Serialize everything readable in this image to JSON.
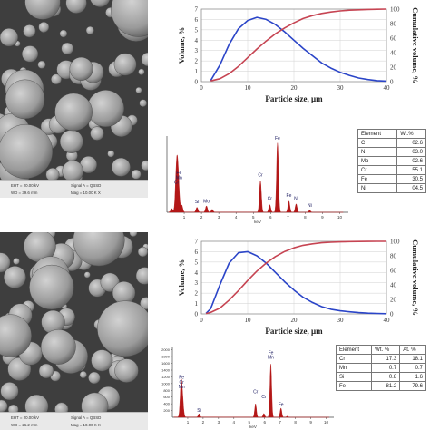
{
  "sem_images": [
    {
      "info": {
        "eht": "EHT = 20.00 kV",
        "wd": "WD = 39.6 mm",
        "signal": "Signal A = QBSD",
        "mag": "Mag = 10.00 K X"
      }
    },
    {
      "info": {
        "eht": "EHT = 20.00 kV",
        "wd": "WD = 26.2 mm",
        "signal": "Signal A = QBSD",
        "mag": "Mag = 10.00 K X"
      }
    }
  ],
  "colors": {
    "volume": "#2b45c8",
    "cumulative": "#c64452",
    "spectrum": "#b31717"
  },
  "chart_data": [
    {
      "type": "line",
      "xlabel": "Particle size, μm",
      "ylabel": "Volume, %",
      "y2label": "Cumulative volume, %",
      "xlim": [
        0,
        40
      ],
      "ylim": [
        0,
        7
      ],
      "y2lim": [
        0,
        100
      ],
      "x_ticks": [
        0,
        10,
        20,
        30,
        40
      ],
      "y_ticks": [
        0,
        1,
        2,
        3,
        4,
        5,
        6,
        7
      ],
      "y2_ticks": [
        0,
        20,
        40,
        60,
        80,
        100
      ],
      "series": [
        {
          "axis": "left",
          "x": [
            2,
            4,
            6,
            8,
            10,
            12,
            14,
            16,
            18,
            20,
            22,
            24,
            26,
            28,
            30,
            32,
            34,
            36,
            38,
            40
          ],
          "values": [
            0.1,
            1.6,
            3.6,
            5.1,
            5.9,
            6.2,
            6.0,
            5.5,
            4.8,
            4.0,
            3.2,
            2.5,
            1.8,
            1.3,
            0.9,
            0.6,
            0.35,
            0.2,
            0.1,
            0.05
          ]
        },
        {
          "axis": "right",
          "x": [
            2,
            4,
            6,
            8,
            10,
            12,
            14,
            16,
            18,
            20,
            22,
            24,
            26,
            28,
            30,
            32,
            34,
            36,
            38,
            40
          ],
          "values": [
            1,
            4,
            11,
            21,
            33,
            45,
            56,
            66,
            74,
            81,
            87,
            91,
            94,
            96,
            97.5,
            98.5,
            99,
            99.5,
            99.8,
            100
          ]
        }
      ]
    },
    {
      "type": "spectrum",
      "xlabel": "keV",
      "x_ticks": [
        1,
        2,
        3,
        4,
        5,
        6,
        7,
        8,
        9,
        10
      ],
      "xlim": [
        0,
        10.5
      ],
      "peaks": [
        {
          "x": 0.28,
          "h": 0.05
        },
        {
          "x": 0.52,
          "h": 0.3
        },
        {
          "x": 0.58,
          "h": 0.44
        },
        {
          "x": 0.64,
          "h": 0.36
        },
        {
          "x": 0.7,
          "h": 0.16
        },
        {
          "x": 0.86,
          "h": 0.1
        },
        {
          "x": 1.74,
          "h": 0.07
        },
        {
          "x": 2.29,
          "h": 0.09
        },
        {
          "x": 2.62,
          "h": 0.04
        },
        {
          "x": 5.41,
          "h": 0.46
        },
        {
          "x": 5.95,
          "h": 0.11
        },
        {
          "x": 6.4,
          "h": 1.0
        },
        {
          "x": 7.06,
          "h": 0.16
        },
        {
          "x": 7.48,
          "h": 0.12
        },
        {
          "x": 8.26,
          "h": 0.03
        }
      ],
      "peak_labels": [
        {
          "text": "Fe",
          "x": 0.7,
          "h": 0.55
        },
        {
          "text": "Mn",
          "x": 0.7,
          "h": 0.48
        },
        {
          "text": "Cr",
          "x": 0.55,
          "h": 0.41
        },
        {
          "text": "Si",
          "x": 1.74,
          "h": 0.13
        },
        {
          "text": "Mo",
          "x": 2.29,
          "h": 0.14
        },
        {
          "text": "Cr",
          "x": 5.41,
          "h": 0.52
        },
        {
          "text": "Fe",
          "x": 6.4,
          "h": 1.05
        },
        {
          "text": "Cr",
          "x": 5.95,
          "h": 0.18
        },
        {
          "text": "Fe",
          "x": 7.06,
          "h": 0.22
        },
        {
          "text": "Ni",
          "x": 7.48,
          "h": 0.18
        },
        {
          "text": "Ni",
          "x": 8.26,
          "h": 0.08
        }
      ]
    },
    {
      "type": "table",
      "columns": [
        "Element",
        "Wt.%"
      ],
      "rows": [
        [
          "C",
          "02.6"
        ],
        [
          "N",
          "03.0"
        ],
        [
          "Mo",
          "02.6"
        ],
        [
          "Cr",
          "55.1"
        ],
        [
          "Fe",
          "30.5"
        ],
        [
          "Ni",
          "04.5"
        ]
      ]
    },
    {
      "type": "line",
      "xlabel": "Particle size, μm",
      "ylabel": "Volume, %",
      "y2label": "Cumulative volume, %",
      "xlim": [
        0,
        40
      ],
      "ylim": [
        0,
        7
      ],
      "y2lim": [
        0,
        100
      ],
      "x_ticks": [
        0,
        10,
        20,
        30,
        40
      ],
      "y_ticks": [
        0,
        1,
        2,
        3,
        4,
        5,
        6,
        7
      ],
      "y2_ticks": [
        0,
        20,
        40,
        60,
        80,
        100
      ],
      "series": [
        {
          "axis": "left",
          "x": [
            1,
            2,
            4,
            6,
            8,
            10,
            12,
            14,
            16,
            18,
            20,
            22,
            24,
            26,
            28,
            30,
            32,
            34,
            36,
            38,
            40
          ],
          "values": [
            0.05,
            0.5,
            2.8,
            4.9,
            5.9,
            6.0,
            5.6,
            4.9,
            4.0,
            3.1,
            2.3,
            1.6,
            1.1,
            0.7,
            0.45,
            0.3,
            0.2,
            0.12,
            0.07,
            0.04,
            0.02
          ]
        },
        {
          "axis": "right",
          "x": [
            1,
            2,
            4,
            6,
            8,
            10,
            12,
            14,
            16,
            18,
            20,
            22,
            24,
            26,
            28,
            30,
            32,
            34,
            36,
            38,
            40
          ],
          "values": [
            0.5,
            2,
            8,
            19,
            32,
            46,
            59,
            70,
            79,
            86,
            91,
            94.5,
            96.5,
            98,
            98.8,
            99.3,
            99.6,
            99.8,
            99.9,
            100,
            100
          ]
        }
      ]
    },
    {
      "type": "spectrum",
      "xlabel": "keV",
      "x_ticks": [
        1,
        2,
        3,
        4,
        5,
        6,
        7,
        8,
        9,
        10
      ],
      "y_ticks": [
        200,
        400,
        600,
        800,
        1000,
        1200,
        1400,
        1600,
        1800,
        2000
      ],
      "ylim": [
        0,
        2100
      ],
      "xlim": [
        0,
        10.5
      ],
      "peaks": [
        {
          "x": 0.52,
          "h": 200
        },
        {
          "x": 0.57,
          "h": 780
        },
        {
          "x": 0.64,
          "h": 440
        },
        {
          "x": 0.7,
          "h": 200
        },
        {
          "x": 1.74,
          "h": 100
        },
        {
          "x": 5.41,
          "h": 400
        },
        {
          "x": 5.95,
          "h": 110
        },
        {
          "x": 6.4,
          "h": 1580
        },
        {
          "x": 7.06,
          "h": 270
        },
        {
          "x": 7.48,
          "h": 30
        }
      ],
      "peak_labels": [
        {
          "text": "Fe",
          "x": 0.6,
          "h": 1150
        },
        {
          "text": "Cr",
          "x": 0.6,
          "h": 1000
        },
        {
          "text": "Mn",
          "x": 0.6,
          "h": 860
        },
        {
          "text": "Si",
          "x": 1.74,
          "h": 160
        },
        {
          "text": "Cr",
          "x": 5.41,
          "h": 720
        },
        {
          "text": "Fe",
          "x": 6.4,
          "h": 1870
        },
        {
          "text": "Mn",
          "x": 6.4,
          "h": 1740
        },
        {
          "text": "Cr",
          "x": 5.95,
          "h": 560
        },
        {
          "text": "Fe",
          "x": 7.06,
          "h": 330
        }
      ]
    },
    {
      "type": "table",
      "columns": [
        "Element",
        "Wt. %",
        "At. %"
      ],
      "rows": [
        [
          "Cr",
          "17.3",
          "18.1"
        ],
        [
          "Mn",
          "0.7",
          "0.7"
        ],
        [
          "Si",
          "0.8",
          "1.6"
        ],
        [
          "Fe",
          "81.2",
          "79.6"
        ]
      ]
    }
  ]
}
